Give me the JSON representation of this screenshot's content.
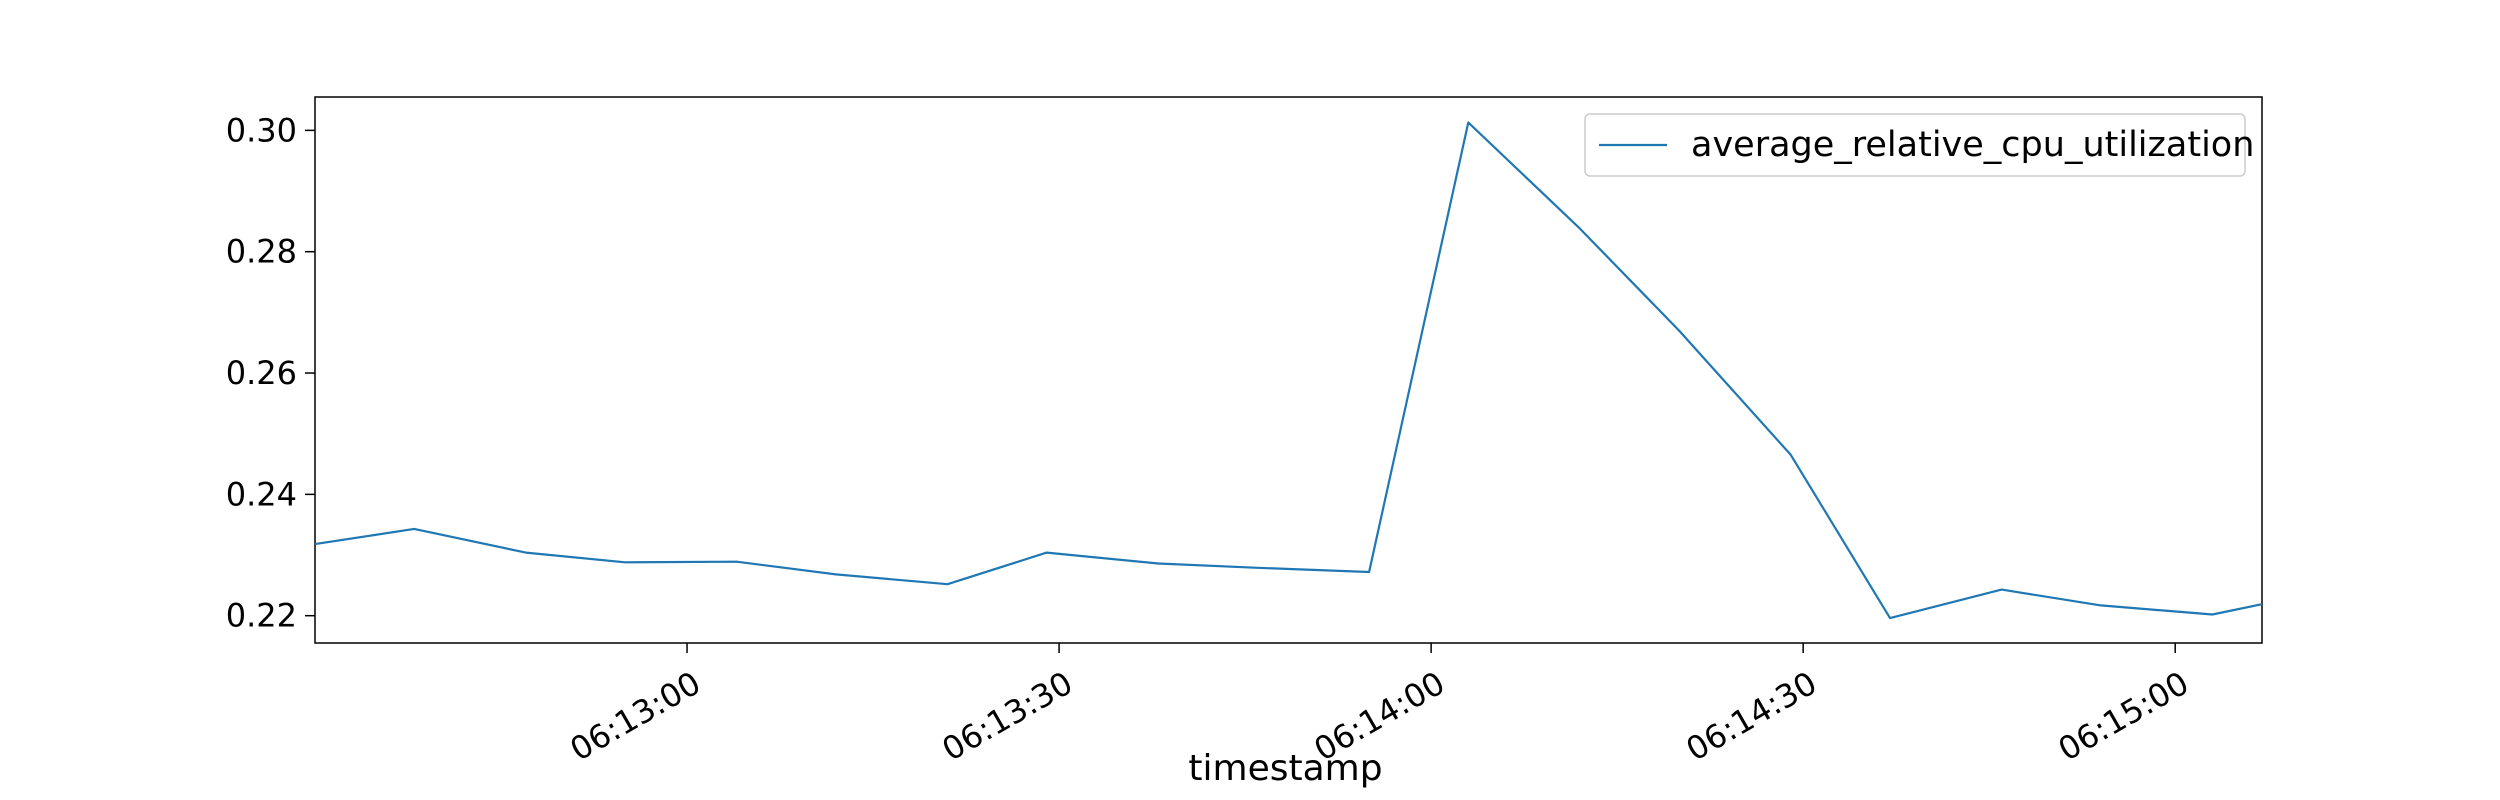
{
  "chart_data": {
    "type": "line",
    "xlabel": "timestamp",
    "ylabel": "",
    "xlim": [
      "06:12:30",
      "06:15:07"
    ],
    "ylim": [
      0.2155,
      0.3055
    ],
    "x_ticks": [
      "06:13:00",
      "06:13:30",
      "06:14:00",
      "06:14:30",
      "06:15:00"
    ],
    "y_ticks": [
      "0.22",
      "0.24",
      "0.26",
      "0.28",
      "0.30"
    ],
    "grid": false,
    "legend_position": "top-right",
    "series": [
      {
        "name": "average_relative_cpu_utilization",
        "color": "#1f77b4",
        "x": [
          "06:12:30",
          "06:12:38",
          "06:12:47",
          "06:12:55",
          "06:13:04",
          "06:13:12",
          "06:13:21",
          "06:13:29",
          "06:13:38",
          "06:13:46",
          "06:13:55",
          "06:14:03",
          "06:14:12",
          "06:14:20",
          "06:14:29",
          "06:14:37",
          "06:14:46",
          "06:14:54",
          "06:15:03",
          "06:15:07"
        ],
        "values": [
          0.2318,
          0.2343,
          0.2304,
          0.2288,
          0.2289,
          0.2268,
          0.2252,
          0.2304,
          0.2286,
          0.2279,
          0.2272,
          0.3013,
          0.2838,
          0.267,
          0.2465,
          0.2196,
          0.2243,
          0.2217,
          0.2202,
          0.2219
        ]
      }
    ]
  }
}
